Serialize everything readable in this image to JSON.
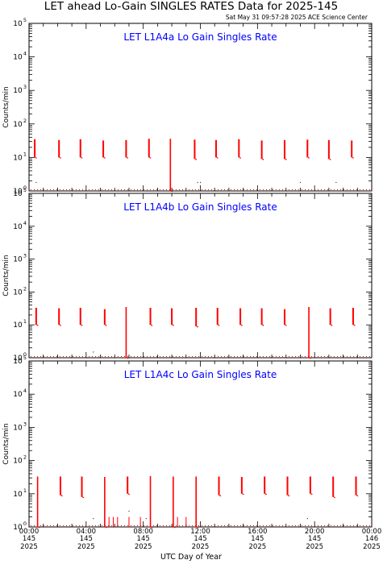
{
  "page_title": "LET ahead Lo-Gain SINGLES RATES Data for 2025-145",
  "timestamp": "Sat May 31 09:57:28 2025 ACE Science Center",
  "x_axis_label": "UTC Day of Year",
  "colors": {
    "data": "#ff0000",
    "panel_title": "#0000ff",
    "axes": "#000000"
  },
  "chart_data": [
    {
      "type": "scatter",
      "title": "LET L1A4a Lo Gain Singles Rate",
      "ylabel": "Counts/min",
      "yscale": "log",
      "ylim": [
        1,
        100000
      ],
      "xlim": [
        0,
        24
      ],
      "ytick_exponents": [
        "0",
        "1",
        "2",
        "3",
        "4",
        "5"
      ],
      "bursts": [
        {
          "x": 0.4,
          "hi": 35,
          "lo": 10
        },
        {
          "x": 2.1,
          "hi": 33,
          "lo": 10
        },
        {
          "x": 3.6,
          "hi": 35,
          "lo": 10
        },
        {
          "x": 5.2,
          "hi": 32,
          "lo": 10
        },
        {
          "x": 6.8,
          "hi": 33,
          "lo": 10
        },
        {
          "x": 8.4,
          "hi": 36,
          "lo": 10
        },
        {
          "x": 9.9,
          "hi": 36,
          "lo": 1
        },
        {
          "x": 11.6,
          "hi": 34,
          "lo": 9
        },
        {
          "x": 13.1,
          "hi": 33,
          "lo": 10
        },
        {
          "x": 14.7,
          "hi": 35,
          "lo": 10
        },
        {
          "x": 16.3,
          "hi": 32,
          "lo": 9
        },
        {
          "x": 17.9,
          "hi": 33,
          "lo": 9
        },
        {
          "x": 19.5,
          "hi": 34,
          "lo": 10
        },
        {
          "x": 21.0,
          "hi": 33,
          "lo": 9
        },
        {
          "x": 22.6,
          "hi": 32,
          "lo": 10
        }
      ],
      "scatter_points": [
        {
          "x": 0.5,
          "y": 1.8
        },
        {
          "x": 11.8,
          "y": 1.8
        },
        {
          "x": 12.0,
          "y": 1.8
        },
        {
          "x": 19.0,
          "y": 1.8
        },
        {
          "x": 21.5,
          "y": 1.8
        }
      ],
      "gaps": []
    },
    {
      "type": "scatter",
      "title": "LET L1A4b Lo Gain Singles Rate",
      "ylabel": "Counts/min",
      "yscale": "log",
      "ylim": [
        1,
        100000
      ],
      "xlim": [
        0,
        24
      ],
      "ytick_exponents": [
        "0",
        "1",
        "2",
        "3",
        "4",
        "5"
      ],
      "bursts": [
        {
          "x": 0.5,
          "hi": 33,
          "lo": 10
        },
        {
          "x": 2.1,
          "hi": 32,
          "lo": 10
        },
        {
          "x": 3.6,
          "hi": 33,
          "lo": 10
        },
        {
          "x": 5.3,
          "hi": 30,
          "lo": 10
        },
        {
          "x": 6.8,
          "hi": 35,
          "lo": 1
        },
        {
          "x": 8.5,
          "hi": 33,
          "lo": 10
        },
        {
          "x": 10.0,
          "hi": 32,
          "lo": 10
        },
        {
          "x": 11.7,
          "hi": 33,
          "lo": 9
        },
        {
          "x": 13.2,
          "hi": 33,
          "lo": 10
        },
        {
          "x": 14.8,
          "hi": 32,
          "lo": 10
        },
        {
          "x": 16.3,
          "hi": 32,
          "lo": 10
        },
        {
          "x": 17.9,
          "hi": 30,
          "lo": 10
        },
        {
          "x": 19.6,
          "hi": 35,
          "lo": 1
        },
        {
          "x": 21.1,
          "hi": 32,
          "lo": 10
        },
        {
          "x": 22.7,
          "hi": 33,
          "lo": 10
        }
      ],
      "scatter_points": [
        {
          "x": 4.5,
          "y": 1.5
        }
      ],
      "gaps": []
    },
    {
      "type": "scatter",
      "title": "LET L1A4c Lo Gain Singles Rate",
      "ylabel": "Counts/min",
      "yscale": "log",
      "ylim": [
        1,
        100000
      ],
      "xlim": [
        0,
        24
      ],
      "ytick_exponents": [
        "0",
        "1",
        "2",
        "3",
        "4",
        "5"
      ],
      "bursts": [
        {
          "x": 0.6,
          "hi": 33,
          "lo": 1
        },
        {
          "x": 2.2,
          "hi": 33,
          "lo": 9
        },
        {
          "x": 3.7,
          "hi": 33,
          "lo": 8
        },
        {
          "x": 5.3,
          "hi": 32,
          "lo": 1
        },
        {
          "x": 6.9,
          "hi": 33,
          "lo": 10
        },
        {
          "x": 8.5,
          "hi": 34,
          "lo": 1
        },
        {
          "x": 10.1,
          "hi": 33,
          "lo": 1
        },
        {
          "x": 11.7,
          "hi": 33,
          "lo": 1
        },
        {
          "x": 13.3,
          "hi": 33,
          "lo": 9
        },
        {
          "x": 14.9,
          "hi": 32,
          "lo": 10
        },
        {
          "x": 16.5,
          "hi": 33,
          "lo": 10
        },
        {
          "x": 18.1,
          "hi": 33,
          "lo": 9
        },
        {
          "x": 19.7,
          "hi": 33,
          "lo": 10
        },
        {
          "x": 21.3,
          "hi": 33,
          "lo": 8
        },
        {
          "x": 22.9,
          "hi": 33,
          "lo": 9
        }
      ],
      "scatter_points": [
        {
          "x": 7.0,
          "y": 3.0
        },
        {
          "x": 4.5,
          "y": 1.8
        },
        {
          "x": 8.2,
          "y": 1.8
        },
        {
          "x": 19.5,
          "y": 1.8
        }
      ],
      "gaps": [
        {
          "x": 5.6,
          "y": 2
        },
        {
          "x": 5.9,
          "y": 2
        },
        {
          "x": 6.2,
          "y": 2
        },
        {
          "x": 7.0,
          "y": 2
        },
        {
          "x": 7.8,
          "y": 2
        },
        {
          "x": 10.4,
          "y": 2
        },
        {
          "x": 11.0,
          "y": 2
        }
      ]
    }
  ],
  "x_ticks": [
    {
      "x": 0,
      "time": "00:00",
      "doy": "145",
      "year": "2025"
    },
    {
      "x": 4,
      "time": "04:00",
      "doy": "145",
      "year": "2025"
    },
    {
      "x": 8,
      "time": "08:00",
      "doy": "145",
      "year": "2025"
    },
    {
      "x": 12,
      "time": "12:00",
      "doy": "145",
      "year": "2025"
    },
    {
      "x": 16,
      "time": "16:00",
      "doy": "145",
      "year": "2025"
    },
    {
      "x": 20,
      "time": "20:00",
      "doy": "145",
      "year": "2025"
    },
    {
      "x": 24,
      "time": "00:00",
      "doy": "146",
      "year": "2025"
    }
  ]
}
